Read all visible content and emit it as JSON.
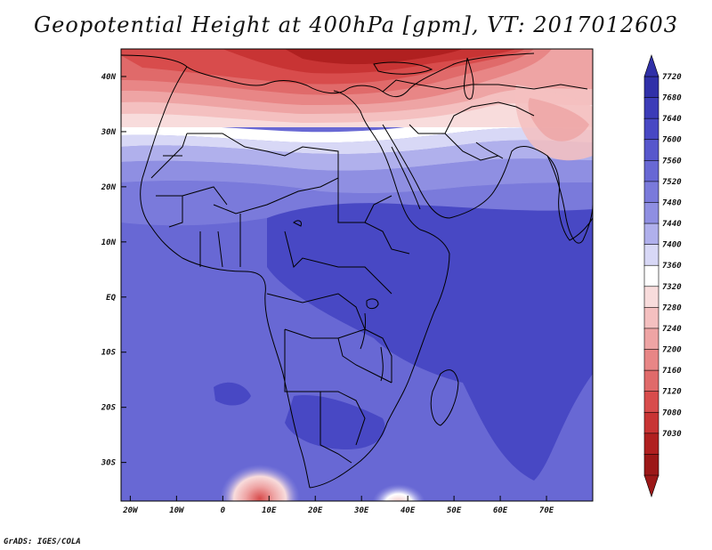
{
  "title": "Geopotential Height at 400hPa [gpm], VT: 2017012603",
  "credit": "GrADS: IGES/COLA",
  "map": {
    "lon_ticks": [
      {
        "label": "20W",
        "value": -20
      },
      {
        "label": "10W",
        "value": -10
      },
      {
        "label": "0",
        "value": 0
      },
      {
        "label": "10E",
        "value": 10
      },
      {
        "label": "20E",
        "value": 20
      },
      {
        "label": "30E",
        "value": 30
      },
      {
        "label": "40E",
        "value": 40
      },
      {
        "label": "50E",
        "value": 50
      },
      {
        "label": "60E",
        "value": 60
      },
      {
        "label": "70E",
        "value": 70
      }
    ],
    "lat_ticks": [
      {
        "label": "40N",
        "value": 40
      },
      {
        "label": "30N",
        "value": 30
      },
      {
        "label": "20N",
        "value": 20
      },
      {
        "label": "10N",
        "value": 10
      },
      {
        "label": "EQ",
        "value": 0
      },
      {
        "label": "10S",
        "value": -10
      },
      {
        "label": "20S",
        "value": -20
      },
      {
        "label": "30S",
        "value": -30
      }
    ],
    "lon_range": [
      -22,
      80
    ],
    "lat_range": [
      -37,
      45
    ]
  },
  "colorbar": {
    "levels": [
      "7720",
      "7680",
      "7640",
      "7600",
      "7560",
      "7520",
      "7480",
      "7440",
      "7400",
      "7360",
      "7320",
      "7280",
      "7240",
      "7200",
      "7160",
      "7120",
      "7080",
      "7030"
    ],
    "colors": [
      "#3030a8",
      "#3c3cb8",
      "#4848c4",
      "#5757cc",
      "#6868d4",
      "#7a7adb",
      "#8f8fe2",
      "#b0b0ec",
      "#d8d8f6",
      "#ffffff",
      "#f8dcdc",
      "#f4c0c0",
      "#eea4a4",
      "#e88686",
      "#e06a6a",
      "#d84c4c",
      "#c83434",
      "#b02020",
      "#9c1818"
    ]
  }
}
